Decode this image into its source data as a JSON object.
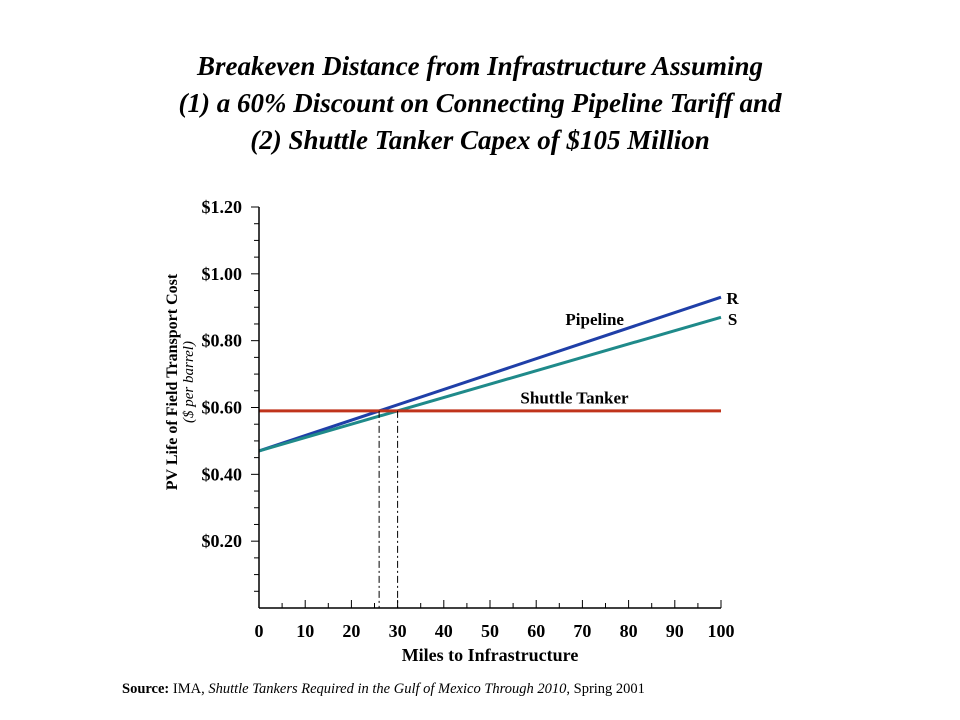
{
  "title": {
    "line1": "Breakeven Distance from Infrastructure Assuming",
    "line2": "(1) a 60% Discount on Connecting Pipeline Tariff and",
    "line3": "(2) Shuttle Tanker Capex of $105 Million"
  },
  "source": {
    "label": "Source:",
    "org": "IMA,",
    "publication": "Shuttle Tankers Required in the Gulf of Mexico Through 2010",
    "date": ", Spring 2001"
  },
  "colors": {
    "pipeline_r": "#1F3FA8",
    "pipeline_s": "#1F8A8A",
    "shuttle_tanker": "#C0341C",
    "axis": "#000000"
  },
  "chart_data": {
    "type": "line",
    "xlabel": "Miles to Infrastructure",
    "ylabel": "PV Life of Field Transport Cost",
    "ylabel_units": "($ per barrel)",
    "xlim": [
      0,
      100
    ],
    "ylim": [
      0,
      1.2
    ],
    "x_ticks": [
      "0",
      "10",
      "20",
      "30",
      "40",
      "50",
      "60",
      "70",
      "80",
      "90",
      "100"
    ],
    "y_ticks": [
      {
        "value": 0.2,
        "label": "$0.20"
      },
      {
        "value": 0.4,
        "label": "$0.40"
      },
      {
        "value": 0.6,
        "label": "$0.60"
      },
      {
        "value": 0.8,
        "label": "$0.80"
      },
      {
        "value": 1.0,
        "label": "$1.00"
      },
      {
        "value": 1.2,
        "label": "$1.20"
      }
    ],
    "grid": false,
    "series": [
      {
        "name": "R",
        "group": "Pipeline",
        "x": [
          0,
          100
        ],
        "y": [
          0.47,
          0.93
        ],
        "color": "#1F3FA8"
      },
      {
        "name": "S",
        "group": "Pipeline",
        "x": [
          0,
          100
        ],
        "y": [
          0.47,
          0.87
        ],
        "color": "#1F8A8A"
      },
      {
        "name": "Shuttle Tanker",
        "x": [
          0,
          100
        ],
        "y": [
          0.59,
          0.59
        ],
        "color": "#C0341C"
      }
    ],
    "annotations": [
      {
        "text": "Pipeline",
        "x": 79,
        "y": 0.865
      },
      {
        "text": "Shuttle Tanker",
        "x": 80,
        "y": 0.63
      },
      {
        "text": "R",
        "x": 102.5,
        "y": 0.928
      },
      {
        "text": "S",
        "x": 102.5,
        "y": 0.865
      }
    ],
    "breakeven_markers": [
      {
        "x": 26,
        "y": 0.59
      },
      {
        "x": 30,
        "y": 0.59
      }
    ]
  }
}
